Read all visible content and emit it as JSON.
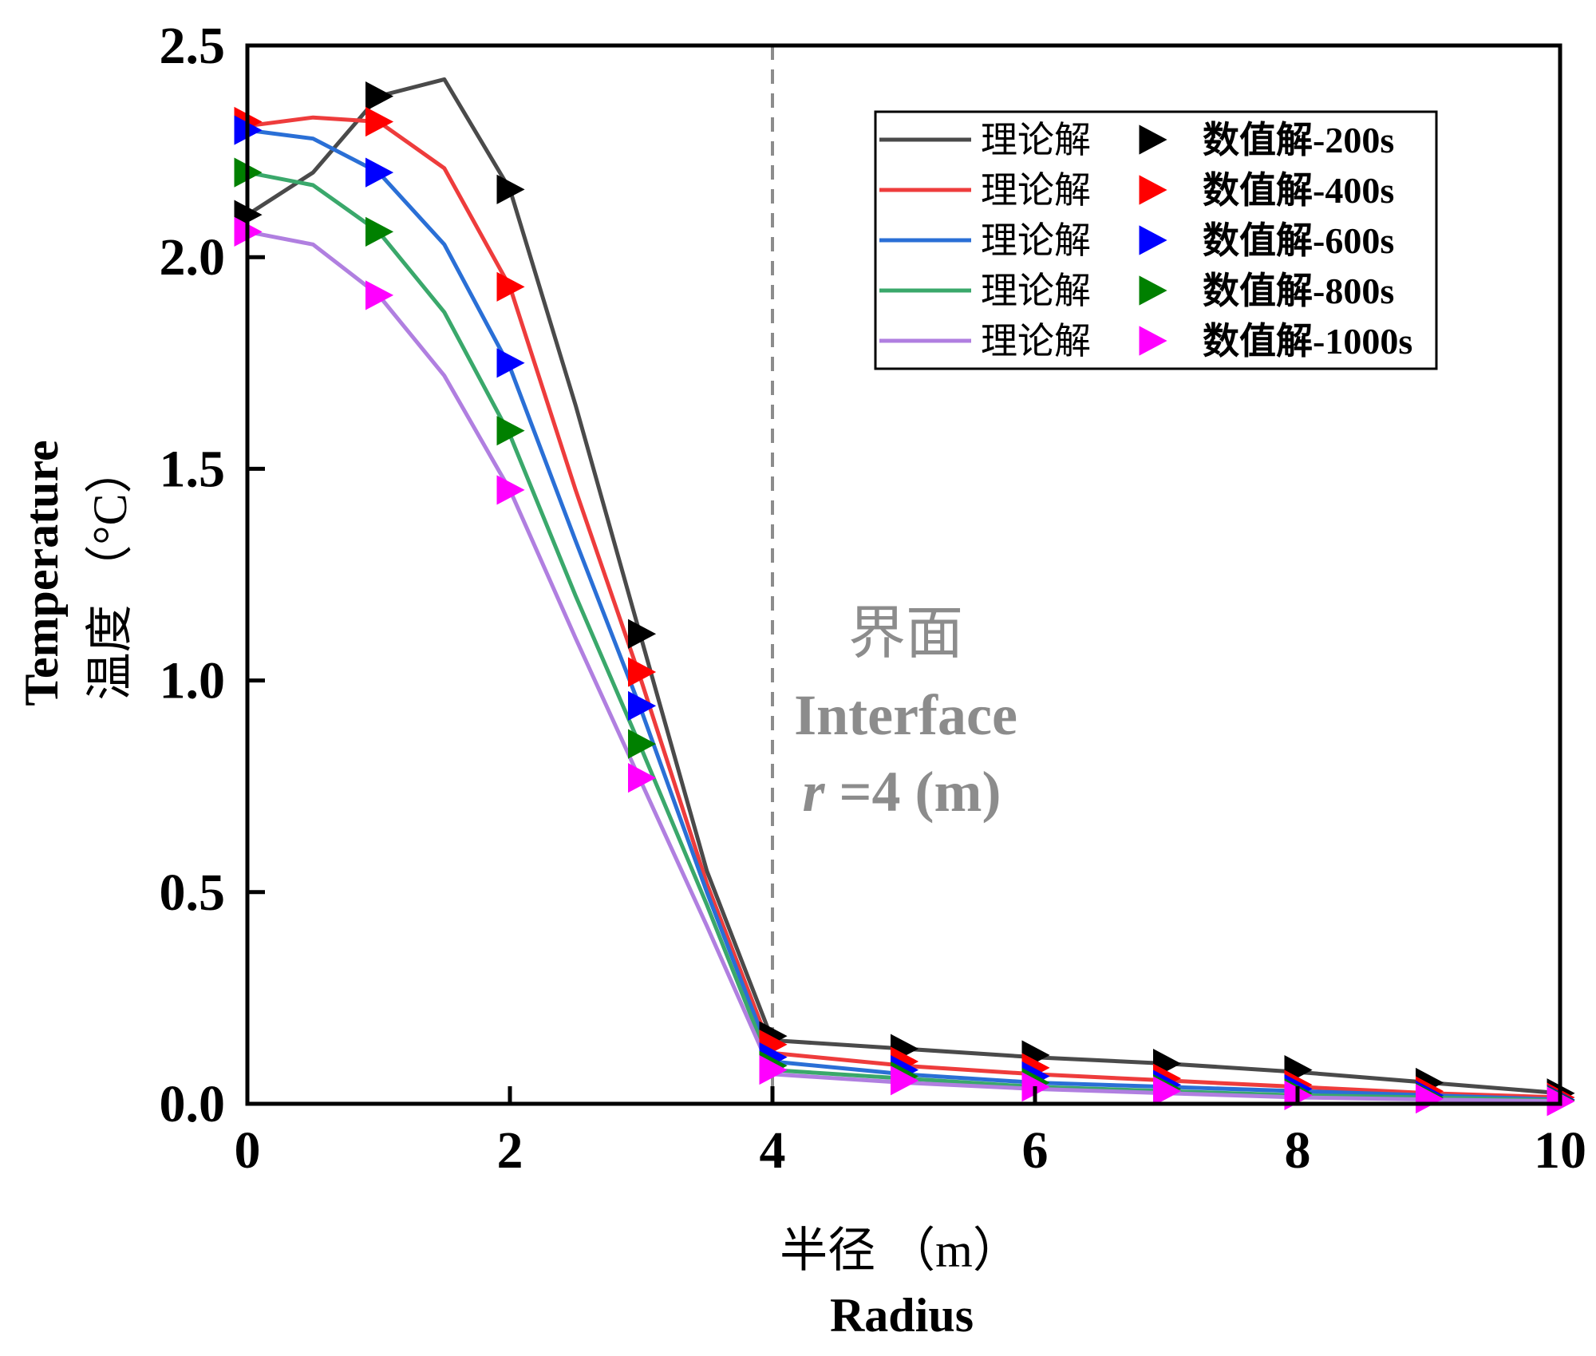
{
  "chart_data": {
    "type": "line",
    "title": "",
    "xlabel": "半径 （m）",
    "xlabel_en": "Radius",
    "ylabel": "温度 （°C）",
    "ylabel_en": "Temperature",
    "xlim": [
      0,
      10
    ],
    "ylim": [
      0,
      2.5
    ],
    "xticks": [
      0,
      2,
      4,
      6,
      8,
      10
    ],
    "yticks": [
      0.0,
      0.5,
      1.0,
      1.5,
      2.0,
      2.5
    ],
    "xtick_labels": [
      "0",
      "2",
      "4",
      "6",
      "8",
      "10"
    ],
    "ytick_labels": [
      "0.0",
      "0.5",
      "1.0",
      "1.5",
      "2.0",
      "2.5"
    ],
    "grid": false,
    "legend_position": "top-right",
    "annotation": {
      "vline_x": 4,
      "line1": "界面",
      "line2": "Interface",
      "line3_italic": "r",
      "line3_rest": " =4 (m)",
      "color": "#8c8c8c"
    },
    "series": [
      {
        "line_name": "理论解",
        "marker_name": "数值解-200s",
        "color": "#4a4a4a",
        "marker_color": "#000000",
        "line_x": [
          0,
          0.5,
          1,
          1.5,
          2,
          2.5,
          3,
          3.5,
          4,
          5,
          6,
          7,
          8,
          9,
          10
        ],
        "line_y": [
          2.1,
          2.2,
          2.38,
          2.42,
          2.16,
          1.65,
          1.1,
          0.55,
          0.15,
          0.13,
          0.11,
          0.095,
          0.075,
          0.05,
          0.025
        ],
        "marker_x": [
          0,
          1,
          2,
          3,
          4,
          5,
          6,
          7,
          8,
          9,
          10
        ],
        "marker_y": [
          2.1,
          2.38,
          2.16,
          1.11,
          0.16,
          0.13,
          0.115,
          0.095,
          0.08,
          0.05,
          0.025
        ]
      },
      {
        "line_name": "理论解",
        "marker_name": "数值解-400s",
        "color": "#ee3c3c",
        "marker_color": "#ff0000",
        "line_x": [
          0,
          0.5,
          1,
          1.5,
          2,
          2.5,
          3,
          3.5,
          4,
          5,
          6,
          7,
          8,
          9,
          10
        ],
        "line_y": [
          2.31,
          2.33,
          2.32,
          2.21,
          1.93,
          1.45,
          1.0,
          0.52,
          0.12,
          0.09,
          0.07,
          0.055,
          0.04,
          0.025,
          0.015
        ],
        "marker_x": [
          0,
          1,
          2,
          3,
          4,
          5,
          6,
          7,
          8,
          9,
          10
        ],
        "marker_y": [
          2.32,
          2.32,
          1.93,
          1.02,
          0.14,
          0.1,
          0.085,
          0.06,
          0.045,
          0.03,
          0.015
        ]
      },
      {
        "line_name": "理论解",
        "marker_name": "数值解-600s",
        "color": "#2a6fd6",
        "marker_color": "#0000ff",
        "line_x": [
          0,
          0.5,
          1,
          1.5,
          2,
          2.5,
          3,
          3.5,
          4,
          5,
          6,
          7,
          8,
          9,
          10
        ],
        "line_y": [
          2.3,
          2.28,
          2.2,
          2.03,
          1.74,
          1.33,
          0.93,
          0.5,
          0.1,
          0.07,
          0.05,
          0.04,
          0.03,
          0.02,
          0.01
        ],
        "marker_x": [
          0,
          1,
          2,
          3,
          4,
          5,
          6,
          7,
          8,
          9,
          10
        ],
        "marker_y": [
          2.3,
          2.2,
          1.75,
          0.94,
          0.11,
          0.08,
          0.065,
          0.045,
          0.035,
          0.02,
          0.01
        ]
      },
      {
        "line_name": "理论解",
        "marker_name": "数值解-800s",
        "color": "#3aa86b",
        "marker_color": "#008000",
        "line_x": [
          0,
          0.5,
          1,
          1.5,
          2,
          2.5,
          3,
          3.5,
          4,
          5,
          6,
          7,
          8,
          9,
          10
        ],
        "line_y": [
          2.2,
          2.17,
          2.06,
          1.87,
          1.58,
          1.2,
          0.84,
          0.47,
          0.08,
          0.06,
          0.04,
          0.03,
          0.02,
          0.015,
          0.008
        ],
        "marker_x": [
          0,
          1,
          2,
          3,
          4,
          5,
          6,
          7,
          8,
          9,
          10
        ],
        "marker_y": [
          2.2,
          2.06,
          1.59,
          0.85,
          0.09,
          0.065,
          0.05,
          0.035,
          0.025,
          0.015,
          0.008
        ]
      },
      {
        "line_name": "理论解",
        "marker_name": "数值解-1000s",
        "color": "#b07fe0",
        "marker_color": "#ff00ff",
        "line_x": [
          0,
          0.5,
          1,
          1.5,
          2,
          2.5,
          3,
          3.5,
          4,
          5,
          6,
          7,
          8,
          9,
          10
        ],
        "line_y": [
          2.06,
          2.03,
          1.91,
          1.72,
          1.45,
          1.1,
          0.76,
          0.42,
          0.07,
          0.05,
          0.035,
          0.025,
          0.015,
          0.01,
          0.006
        ],
        "marker_x": [
          0,
          1,
          2,
          3,
          4,
          5,
          6,
          7,
          8,
          9,
          10
        ],
        "marker_y": [
          2.06,
          1.91,
          1.45,
          0.77,
          0.08,
          0.055,
          0.04,
          0.03,
          0.02,
          0.012,
          0.006
        ]
      }
    ]
  }
}
